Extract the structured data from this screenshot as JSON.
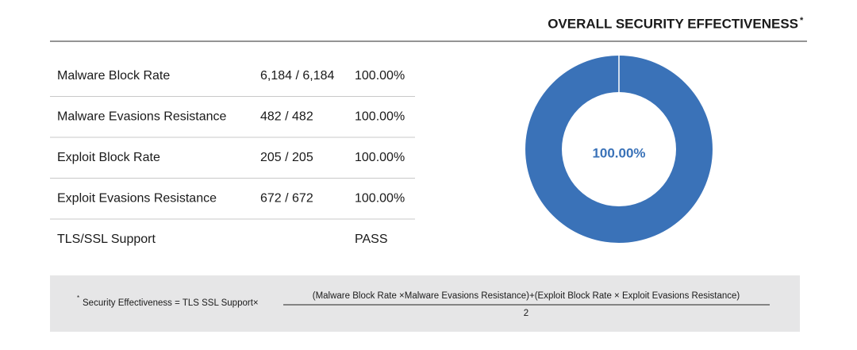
{
  "title": "OVERALL SECURITY EFFECTIVENESS",
  "title_mark": "*",
  "table": {
    "rows": [
      {
        "label": "Malware Block Rate",
        "count": "6,184 / 6,184",
        "rate": "100.00%"
      },
      {
        "label": "Malware Evasions Resistance",
        "count": "482 / 482",
        "rate": "100.00%"
      },
      {
        "label": "Exploit Block Rate",
        "count": "205 / 205",
        "rate": "100.00%"
      },
      {
        "label": "Exploit Evasions Resistance",
        "count": "672 / 672",
        "rate": "100.00%"
      },
      {
        "label": "TLS/SSL Support",
        "rate": "PASS"
      }
    ]
  },
  "chart_data": {
    "type": "donut",
    "values": [
      100
    ],
    "value_labels": [
      "100.00%"
    ],
    "color": "#3a72b8"
  },
  "footnote": {
    "mark": "*",
    "lhs": "Security Effectiveness = TLS SSL Support×",
    "numerator": "(Malware Block Rate ×Malware Evasions Resistance)+(Exploit Block Rate × Exploit Evasions Resistance)",
    "denominator": "2"
  }
}
